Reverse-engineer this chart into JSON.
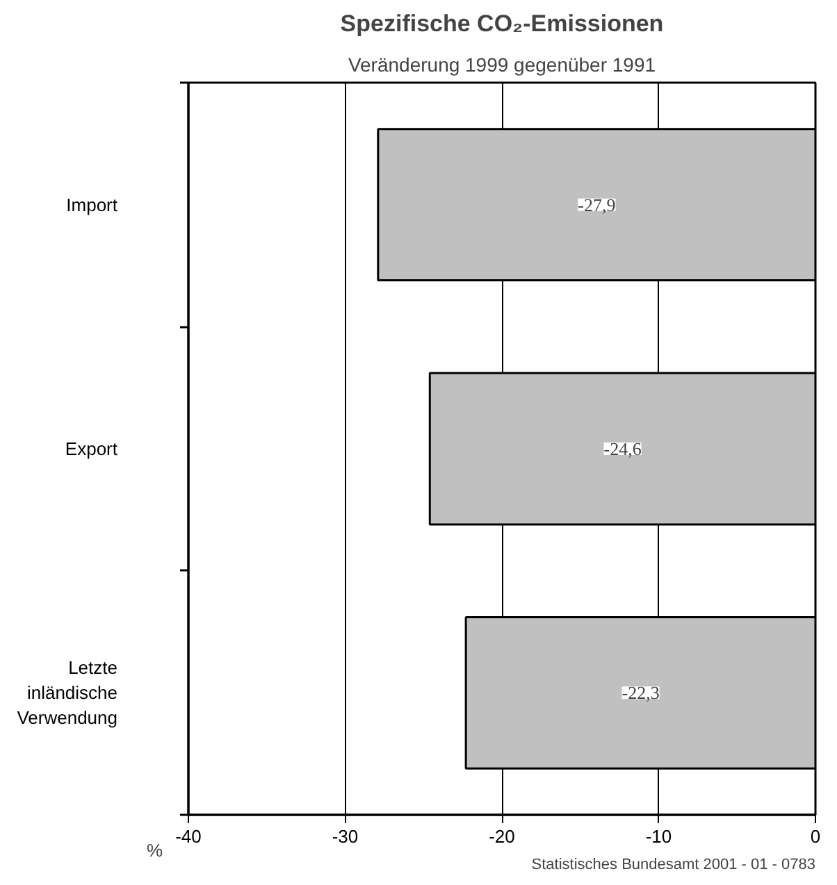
{
  "chart_data": {
    "type": "bar",
    "orientation": "horizontal",
    "title": "Spezifische CO₂-Emissionen",
    "subtitle": "Veränderung 1999 gegenüber 1991",
    "xlabel": "%",
    "categories": [
      "Import",
      "Export",
      "Letzte inländische Verwendung"
    ],
    "values": [
      -27.9,
      -24.6,
      -22.3
    ],
    "color": "#c0c0c0",
    "value_labels": [
      "-27,9",
      "-24,6",
      "-22,3"
    ],
    "xlim": [
      -40,
      0
    ],
    "xticks": [
      -40,
      -30,
      -20,
      -10,
      0
    ],
    "grid": "x",
    "annotations": [
      "Statistisches Bundesamt 2001 - 01 - 0783"
    ]
  }
}
